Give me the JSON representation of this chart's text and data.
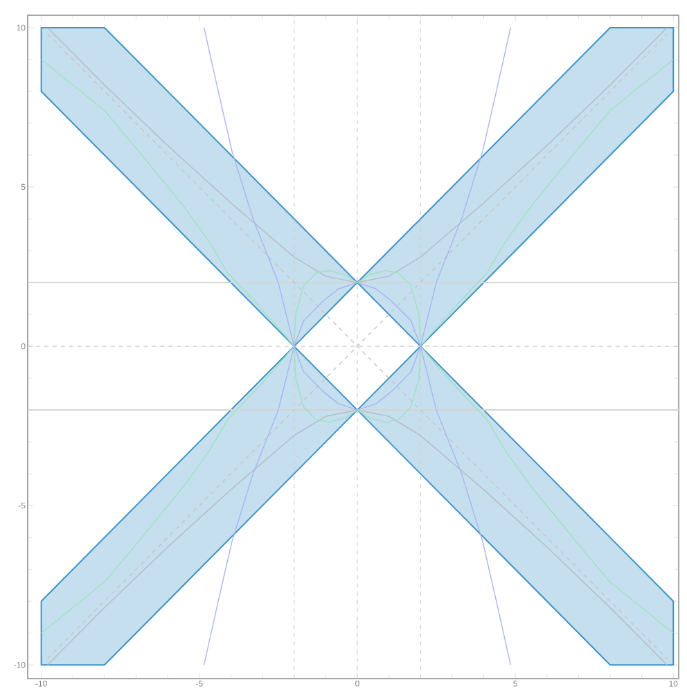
{
  "chart_data": {
    "type": "line",
    "xlim": [
      -10.43,
      10.17
    ],
    "ylim": [
      -10.43,
      10.39
    ],
    "xticks": [
      -10,
      -5,
      0,
      5,
      10
    ],
    "yticks": [
      -10,
      -5,
      0,
      5,
      10
    ],
    "series": [
      {
        "type": "area",
        "color": "#3d93c8",
        "x": [
          -10,
          -8,
          -2,
          0,
          -2,
          -10
        ],
        "values": [
          10,
          10,
          4,
          2,
          0,
          8
        ]
      },
      {
        "type": "area",
        "color": "#3d93c8",
        "x": [
          0,
          2,
          8,
          10,
          10,
          8,
          2
        ],
        "values": [
          2,
          0,
          6,
          8,
          10,
          10,
          4
        ]
      },
      {
        "type": "area",
        "color": "#3d93c8",
        "x": [
          -10,
          -8,
          -2,
          0,
          -2,
          -10
        ],
        "values": [
          -10,
          -10,
          -4,
          -2,
          0,
          -8
        ]
      },
      {
        "type": "area",
        "color": "#3d93c8",
        "x": [
          0,
          2,
          8,
          10,
          10,
          8,
          2
        ],
        "values": [
          -2,
          0,
          -6,
          -8,
          -10,
          -10,
          -4
        ]
      },
      {
        "color": "#c4c4c4",
        "line_style": "dashed",
        "x": [
          -9.8,
          9.8
        ],
        "values": [
          9.8,
          -9.8
        ]
      },
      {
        "color": "#c4c4c4",
        "line_style": "dashed",
        "x": [
          -9.8,
          9.8
        ],
        "values": [
          -9.8,
          9.8
        ]
      },
      {
        "color": "#b4bcc4",
        "x": [
          -9.8,
          -8,
          -6,
          -4,
          -2,
          -1,
          0,
          1,
          2,
          4,
          6,
          8,
          9.8
        ],
        "values": [
          10,
          8.2,
          6.3,
          4.5,
          2.8,
          2.2,
          2,
          2.2,
          2.8,
          4.5,
          6.3,
          8.2,
          10
        ]
      },
      {
        "color": "#b4bcc4",
        "x": [
          -9.8,
          -8,
          -6,
          -4,
          -2,
          -1,
          0,
          1,
          2,
          4,
          6,
          8,
          9.8
        ],
        "values": [
          -10,
          -8.2,
          -6.3,
          -4.5,
          -2.8,
          -2.2,
          -2,
          -2.2,
          -2.8,
          -4.5,
          -6.3,
          -8.2,
          -10
        ]
      },
      {
        "color": "#9ee0c0",
        "x": [
          -10,
          -8,
          -6.9,
          -5.5,
          -4.7,
          -4.1,
          -3.26,
          -2.6,
          -2,
          -1.95,
          -1.7,
          -1.3,
          -0.9,
          -0.4,
          0,
          0.4,
          0.9,
          1.3,
          1.7,
          1.95,
          2,
          2.6,
          3.26,
          4.1,
          4.7,
          5.5,
          6.9,
          8,
          10
        ],
        "values": [
          9,
          7.4,
          6.1,
          4.4,
          3.3,
          2.3,
          1.42,
          0.7,
          0,
          1,
          1.9,
          2.3,
          2.38,
          2.25,
          2,
          2.25,
          2.38,
          2.3,
          1.9,
          1,
          0,
          -0.7,
          -1.42,
          -2.3,
          -3.3,
          -4.4,
          -6.1,
          -7.4,
          -9
        ]
      },
      {
        "color": "#9ee0c0",
        "x": [
          -10,
          -8,
          -6.9,
          -5.5,
          -4.7,
          -4.1,
          -3.26,
          -2.6,
          -2,
          -1.95,
          -1.7,
          -1.3,
          -0.9,
          -0.4,
          0,
          0.4,
          0.9,
          1.3,
          1.7,
          1.95,
          2,
          2.6,
          3.26,
          4.1,
          4.7,
          5.5,
          6.9,
          8,
          10
        ],
        "values": [
          -9,
          -7.4,
          -6.1,
          -4.4,
          -3.3,
          -2.3,
          -1.42,
          -0.7,
          0,
          -1,
          -1.9,
          -2.3,
          -2.38,
          -2.25,
          -2,
          -2.25,
          -2.38,
          -2.3,
          -1.9,
          -1,
          0,
          0.7,
          1.42,
          2.3,
          3.3,
          4.4,
          6.1,
          7.4,
          9
        ]
      },
      {
        "color": "#aab4f4",
        "x": [
          -4.85,
          -4.4,
          -3.96,
          -3.3,
          -2.5,
          -2,
          -1.7,
          -1.08,
          -0.6,
          0,
          0.6,
          1.08,
          1.7,
          2,
          2.5,
          3.3,
          3.96,
          4.4,
          4.85
        ],
        "values": [
          10,
          8,
          6.1,
          4,
          2,
          0,
          0.8,
          1.42,
          1.8,
          2,
          1.8,
          1.42,
          0.8,
          0,
          -2,
          -4,
          -6.1,
          -8,
          -10
        ]
      },
      {
        "color": "#aab4f4",
        "x": [
          -4.85,
          -4.4,
          -3.96,
          -3.3,
          -2.5,
          -2,
          -1.7,
          -1.08,
          -0.6,
          0,
          0.6,
          1.08,
          1.7,
          2,
          2.5,
          3.3,
          3.96,
          4.4,
          4.85
        ],
        "values": [
          -10,
          -8,
          -6.1,
          -4,
          -2,
          0,
          -0.8,
          -1.42,
          -1.8,
          -2,
          -1.8,
          -1.42,
          -0.8,
          0,
          2,
          4,
          6.1,
          8,
          10
        ]
      }
    ],
    "ref_lines": [
      {
        "axis": "x",
        "value": -2,
        "color": "#cccccc",
        "line_style": "dashed"
      },
      {
        "axis": "x",
        "value": 0,
        "color": "#cccccc",
        "line_style": "dashed"
      },
      {
        "axis": "x",
        "value": 2,
        "color": "#cccccc",
        "line_style": "dashed"
      },
      {
        "axis": "y",
        "value": 0,
        "color": "#cccccc",
        "line_style": "dashed"
      },
      {
        "axis": "y",
        "value": 2,
        "color": "#d4d4d4",
        "line_style": "solid"
      },
      {
        "axis": "y",
        "value": -2,
        "color": "#d4d4d4",
        "line_style": "solid"
      }
    ]
  }
}
